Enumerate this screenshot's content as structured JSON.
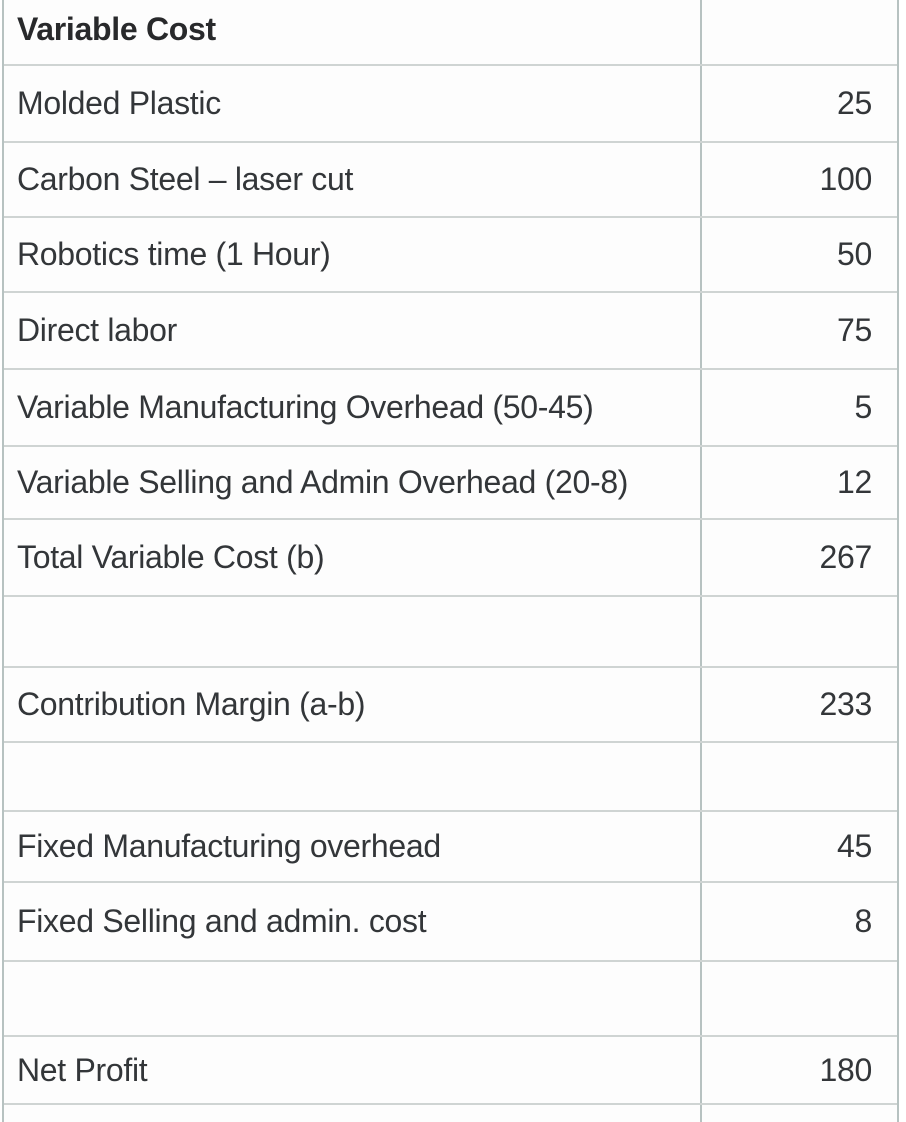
{
  "table": {
    "header": {
      "label": "Variable Cost",
      "value": ""
    },
    "rows": [
      {
        "label": "Molded Plastic",
        "value": "25"
      },
      {
        "label": "Carbon Steel – laser cut",
        "value": "100"
      },
      {
        "label": "Robotics time (1 Hour)",
        "value": "50"
      },
      {
        "label": "Direct labor",
        "value": "75"
      },
      {
        "label": "Variable Manufacturing Overhead (50-45)",
        "value": "5"
      },
      {
        "label": "Variable Selling and Admin Overhead (20-8)",
        "value": "12"
      },
      {
        "label": "Total Variable Cost (b)",
        "value": "267"
      },
      {
        "label": "",
        "value": ""
      },
      {
        "label": "Contribution Margin (a-b)",
        "value": "233"
      },
      {
        "label": "",
        "value": ""
      },
      {
        "label": "Fixed Manufacturing overhead",
        "value": "45"
      },
      {
        "label": "Fixed Selling and admin. cost",
        "value": "8"
      },
      {
        "label": "",
        "value": ""
      },
      {
        "label": "Net Profit",
        "value": "180"
      },
      {
        "label": "",
        "value": ""
      }
    ]
  },
  "colors": {
    "text": "#333639",
    "header_text": "#28292b",
    "horizontal_border": "#cfd4d3",
    "vertical_border": "#b7c2c1",
    "cell_background": "#fdfdfd"
  }
}
